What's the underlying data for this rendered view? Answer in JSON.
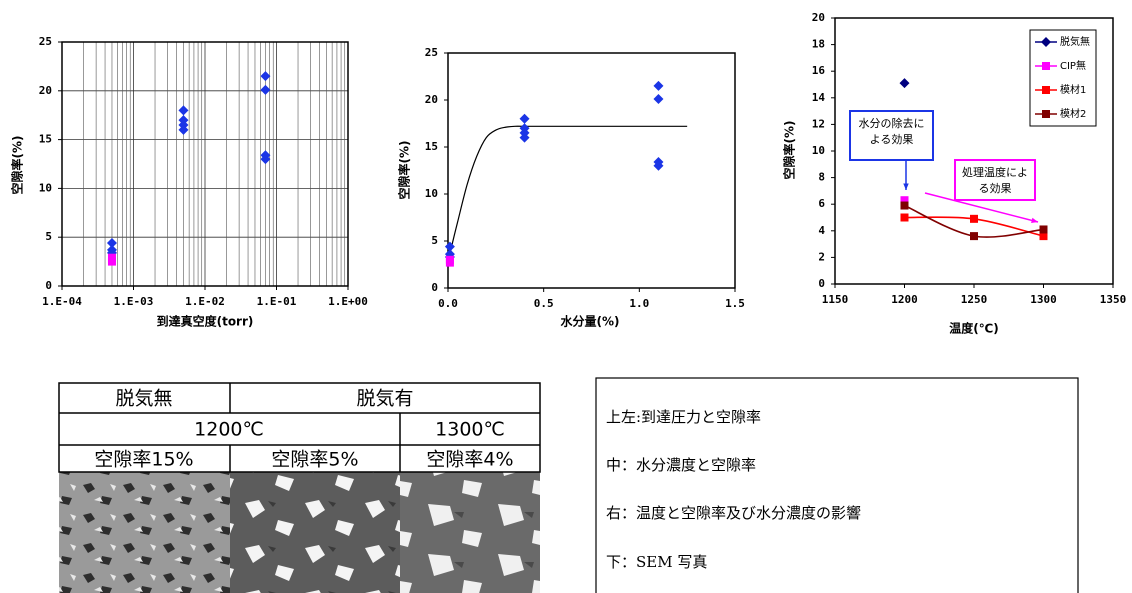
{
  "chart_data": [
    {
      "type": "scatter",
      "xscale": "log",
      "grid": true,
      "minor_grid": true,
      "xlabel": "到達真空度(torr)",
      "ylabel": "空隙率(%)",
      "xlim": [
        0.0001,
        1
      ],
      "xticks": [
        {
          "value": 0.0001,
          "label": "1.E-04"
        },
        {
          "value": 0.001,
          "label": "1.E-03"
        },
        {
          "value": 0.01,
          "label": "1.E-02"
        },
        {
          "value": 0.1,
          "label": "1.E-01"
        },
        {
          "value": 1,
          "label": "1.E+00"
        }
      ],
      "ylim": [
        0,
        25
      ],
      "yticks": [
        0,
        5,
        10,
        15,
        20,
        25
      ],
      "series": [
        {
          "color": "#1b35e6",
          "marker": "diamond",
          "x": [
            0.0005,
            0.0005,
            0.0005,
            0.005,
            0.005,
            0.005,
            0.005,
            0.07,
            0.07,
            0.07,
            0.07
          ],
          "values": [
            4.4,
            3.7,
            3.4,
            18,
            17,
            16.5,
            16,
            21.5,
            20.1,
            13.4,
            13
          ]
        },
        {
          "color": "#ff00ff",
          "marker": "square",
          "x": [
            0.0005,
            0.0005
          ],
          "values": [
            2.5,
            2.9
          ]
        }
      ]
    },
    {
      "type": "scatter",
      "grid": false,
      "xlabel": "水分量(%)",
      "ylabel": "空隙率(%)",
      "xlim": [
        0,
        1.5
      ],
      "xticks": [
        {
          "value": 0,
          "label": "0.0"
        },
        0.5,
        {
          "value": 1,
          "label": "1.0"
        },
        1.5
      ],
      "ylim": [
        0,
        25
      ],
      "yticks": [
        0,
        5,
        10,
        15,
        20,
        25
      ],
      "series": [
        {
          "color": "#1b35e6",
          "marker": "diamond",
          "x": [
            0.01,
            0.01,
            0.01,
            0.4,
            0.4,
            0.4,
            0.4,
            1.1,
            1.1,
            1.1,
            1.1
          ],
          "values": [
            4.4,
            3.6,
            3.3,
            18,
            17,
            16.5,
            16,
            21.5,
            20.1,
            13.4,
            13
          ]
        },
        {
          "color": "#ff00ff",
          "marker": "square",
          "x": [
            0.01,
            0.01
          ],
          "values": [
            2.7,
            3.0
          ]
        },
        {
          "color": "#000000",
          "line": true,
          "smooth": true,
          "x": [
            0,
            0.02,
            0.05,
            0.1,
            0.15,
            0.2,
            0.25,
            0.3,
            0.35,
            0.4,
            0.6,
            0.8,
            1.0,
            1.25
          ],
          "values": [
            2.5,
            4.5,
            7,
            11,
            14,
            16,
            16.8,
            17.1,
            17.2,
            17.2,
            17.2,
            17.2,
            17.2,
            17.2
          ]
        }
      ]
    },
    {
      "type": "line",
      "grid": false,
      "legend": "upper right",
      "xlabel": "温度(℃)",
      "ylabel": "空隙率(%)",
      "xlim": [
        1150,
        1350
      ],
      "xticks": [
        1150,
        1200,
        1250,
        1300,
        1350
      ],
      "ylim": [
        0,
        20
      ],
      "yticks": [
        0,
        2,
        4,
        6,
        8,
        10,
        12,
        14,
        16,
        18,
        20
      ],
      "series": [
        {
          "name": "脱気無",
          "color": "#000080",
          "marker": "diamond",
          "line": true,
          "x": [
            1200
          ],
          "values": [
            15.1
          ]
        },
        {
          "name": "CIP無",
          "color": "#ff00ff",
          "marker": "square",
          "line": true,
          "x": [
            1200
          ],
          "values": [
            6.3
          ]
        },
        {
          "name": "模材1",
          "color": "#ff0000",
          "marker": "square",
          "line": true,
          "smooth": true,
          "x": [
            1200,
            1250,
            1300
          ],
          "values": [
            5.0,
            4.9,
            3.6
          ]
        },
        {
          "name": "模材2",
          "color": "#800000",
          "marker": "square",
          "line": true,
          "smooth": true,
          "x": [
            1200,
            1250,
            1300
          ],
          "values": [
            5.9,
            3.6,
            4.1
          ]
        }
      ],
      "annotations": [
        {
          "lines": [
            "水分の除去に",
            "よる効果"
          ],
          "color": "#1b35e6"
        },
        {
          "lines": [
            "処理温度によ",
            "る効果"
          ],
          "color": "#ff00ff"
        }
      ]
    }
  ],
  "table": {
    "rows": [
      [
        "脱気無",
        "脱気有"
      ],
      [
        "1200℃",
        "1300℃"
      ],
      [
        "空隙率15%",
        "空隙率5%",
        "空隙率4%"
      ]
    ]
  },
  "notes": [
    "上左:到達圧力と空隙率",
    "中：水分濃度と空隙率",
    "右：温度と空隙率及び水分濃度の影響",
    "下：SEM 写真"
  ]
}
